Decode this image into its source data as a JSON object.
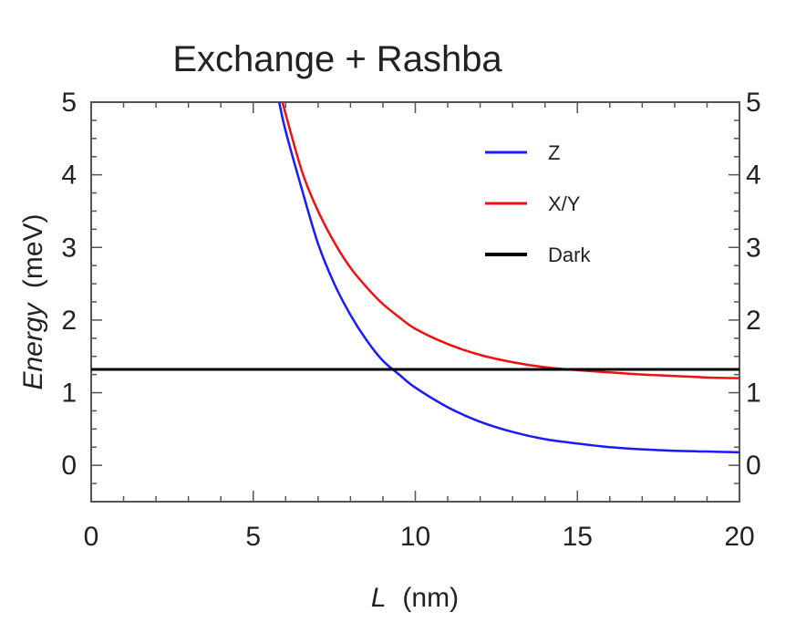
{
  "chart_data": {
    "type": "line",
    "title": "Exchange + Rashba",
    "xlabel_var": "L",
    "xlabel_unit": "(nm)",
    "ylabel_var": "Energy",
    "ylabel_unit": "(meV)",
    "xlim": [
      0,
      20
    ],
    "ylim": [
      -0.5,
      5
    ],
    "x_ticks": [
      0,
      5,
      10,
      15,
      20
    ],
    "y_ticks": [
      0,
      1,
      2,
      3,
      4,
      5
    ],
    "grid": false,
    "legend_position": "top-right",
    "series": [
      {
        "name": "Z",
        "color": "#1a1aff",
        "x": [
          5.8,
          6.0,
          6.5,
          7.0,
          7.5,
          8.0,
          8.5,
          9.0,
          9.5,
          10.0,
          11.0,
          12.0,
          13.0,
          14.0,
          15.0,
          16.0,
          17.0,
          18.0,
          19.0,
          20.0
        ],
        "y": [
          5.0,
          4.6,
          3.8,
          3.05,
          2.5,
          2.07,
          1.72,
          1.44,
          1.25,
          1.07,
          0.8,
          0.6,
          0.46,
          0.36,
          0.3,
          0.25,
          0.22,
          0.2,
          0.19,
          0.18
        ]
      },
      {
        "name": "X/Y",
        "color": "#ee1111",
        "x": [
          5.9,
          6.5,
          7.0,
          7.5,
          8.0,
          8.5,
          9.0,
          9.5,
          10.0,
          11.0,
          12.0,
          13.0,
          14.0,
          15.0,
          16.0,
          17.0,
          18.0,
          19.0,
          20.0
        ],
        "y": [
          5.0,
          4.05,
          3.5,
          3.07,
          2.72,
          2.45,
          2.22,
          2.04,
          1.88,
          1.67,
          1.52,
          1.42,
          1.35,
          1.31,
          1.28,
          1.25,
          1.23,
          1.21,
          1.2
        ]
      },
      {
        "name": "Dark",
        "color": "#000000",
        "x": [
          0,
          20
        ],
        "y": [
          1.32,
          1.32
        ]
      }
    ]
  }
}
